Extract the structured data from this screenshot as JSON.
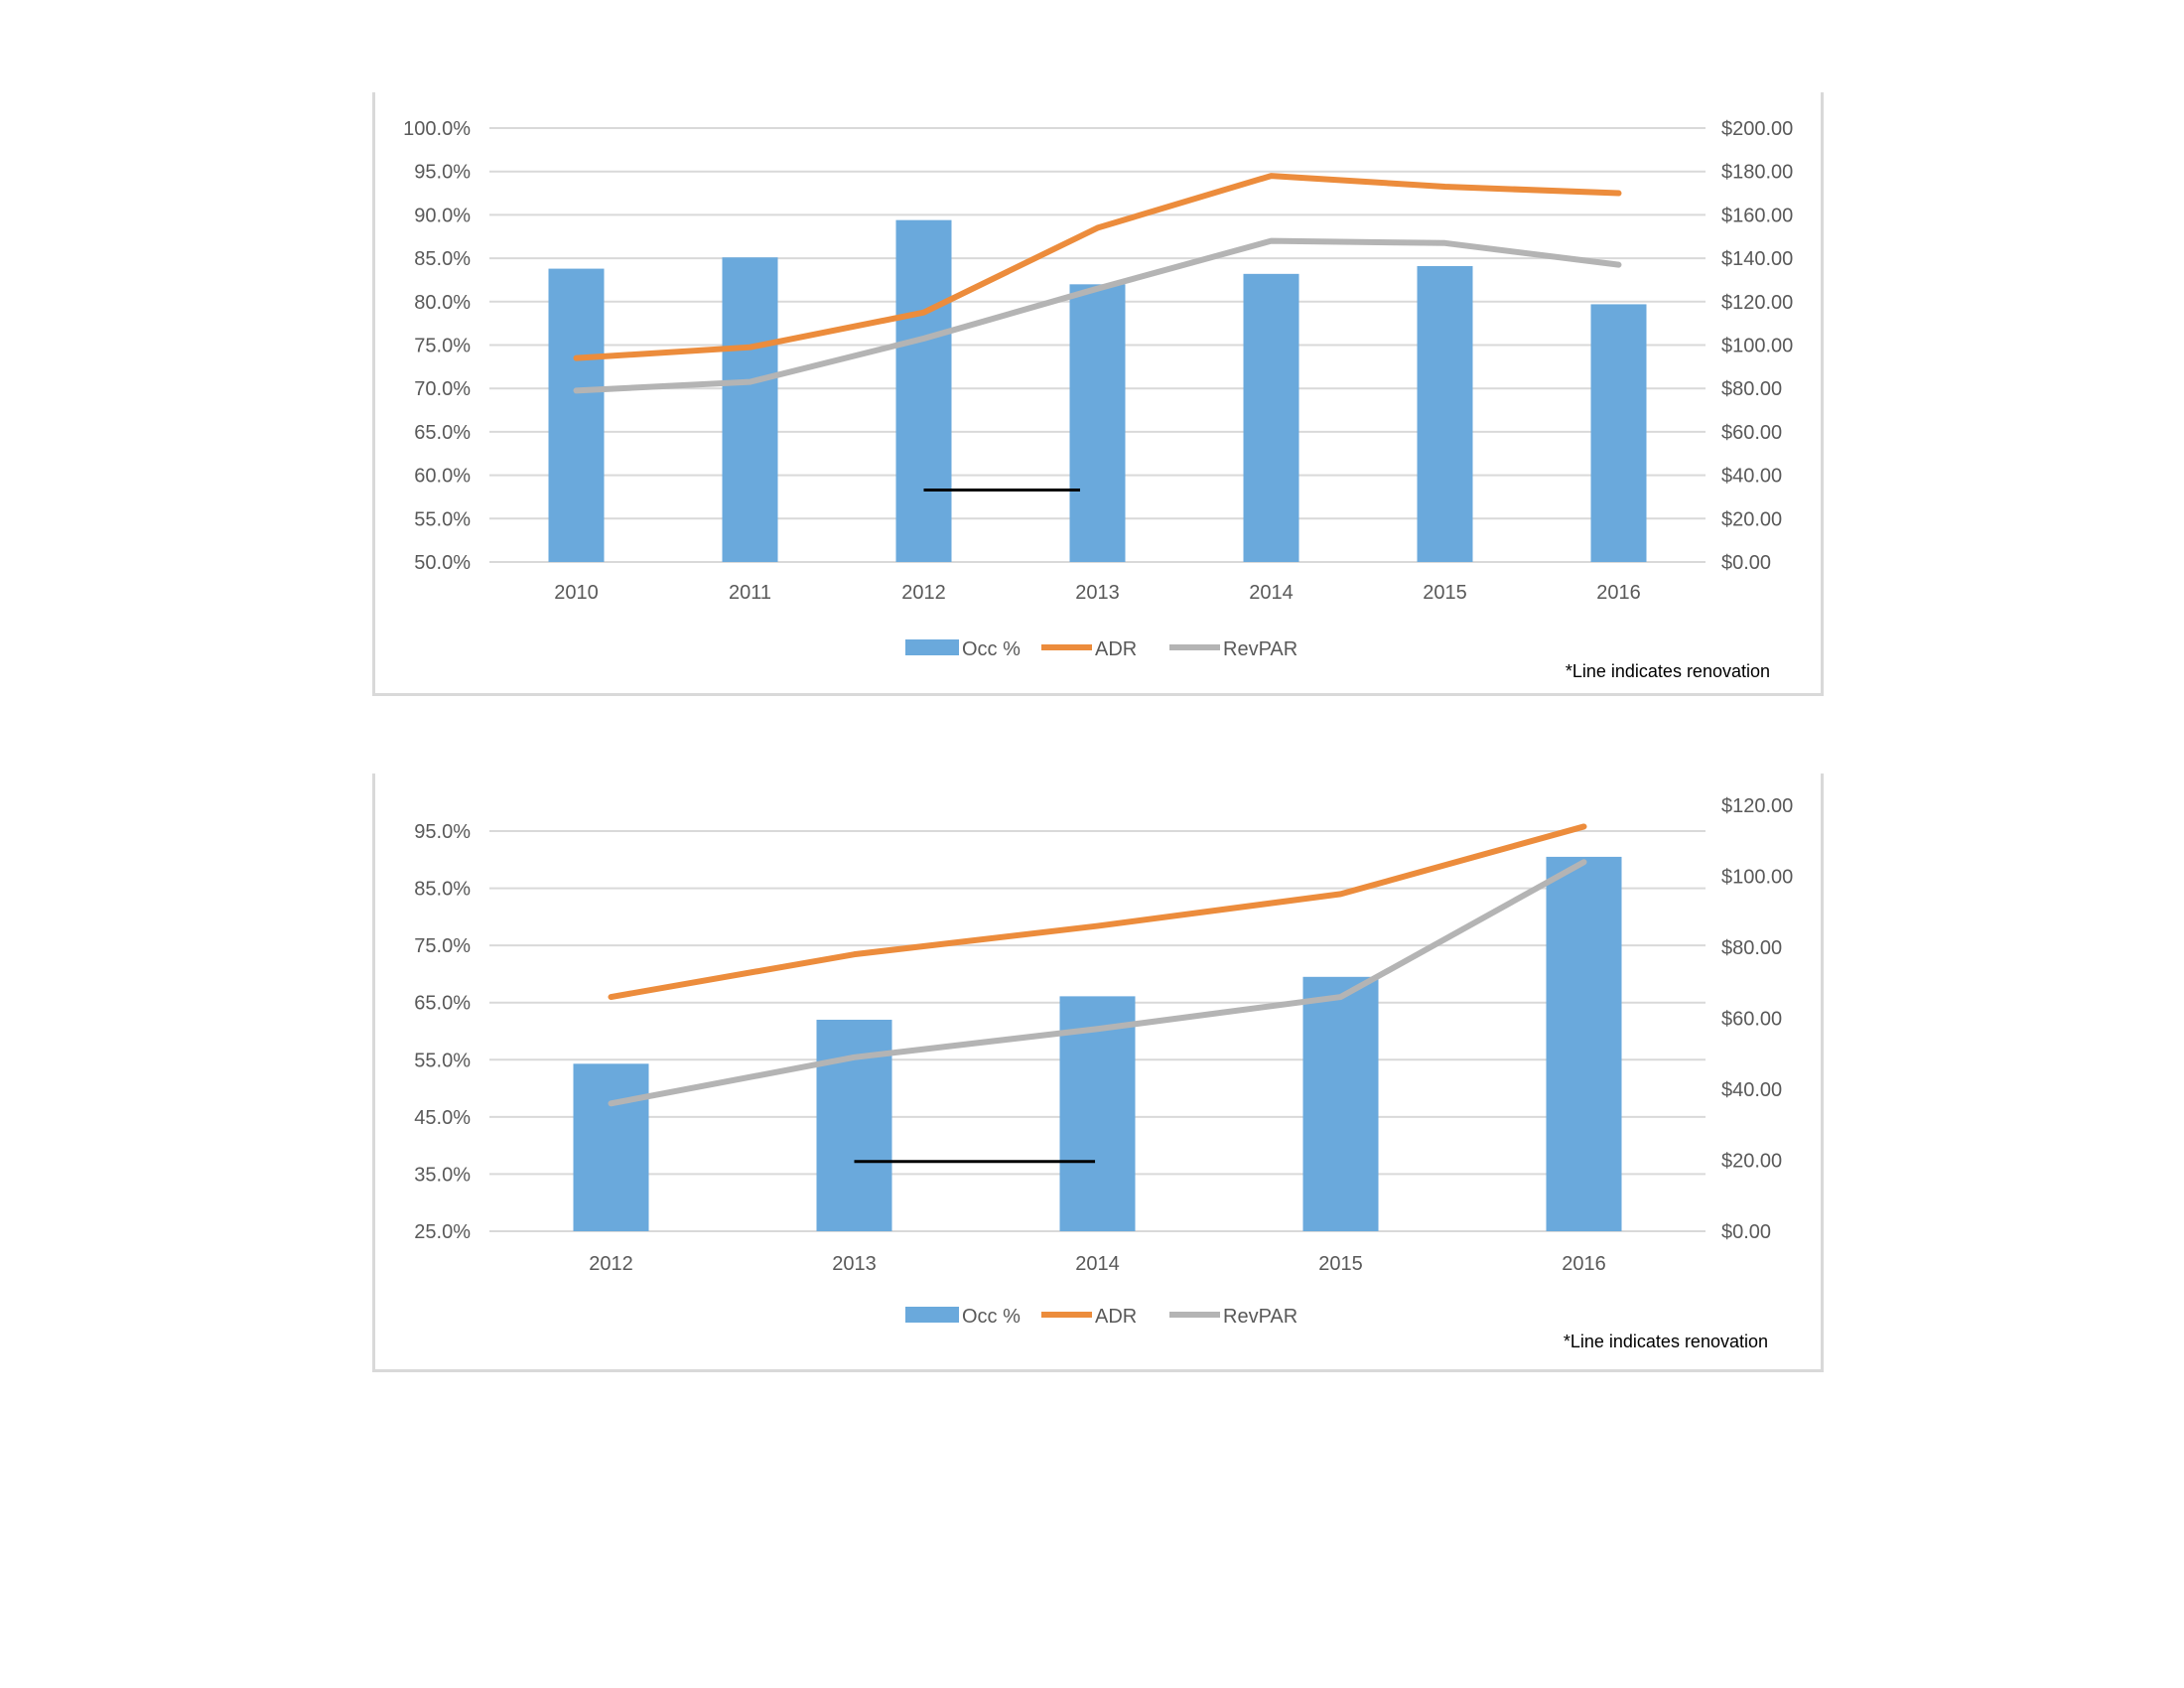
{
  "chart_data": [
    {
      "type": "bar",
      "title": "",
      "categories": [
        "2010",
        "2011",
        "2012",
        "2013",
        "2014",
        "2015",
        "2016"
      ],
      "series": [
        {
          "name": "Occ %",
          "type": "bar",
          "axis": "left",
          "values": [
            83.8,
            85.1,
            89.4,
            82.0,
            83.2,
            84.1,
            79.7
          ]
        },
        {
          "name": "ADR",
          "type": "line",
          "axis": "right",
          "values": [
            94,
            99,
            115,
            154,
            178,
            173,
            170
          ]
        },
        {
          "name": "RevPAR",
          "type": "line",
          "axis": "right",
          "values": [
            79,
            83,
            103,
            126,
            148,
            147,
            137
          ]
        }
      ],
      "left_axis": {
        "min": 50,
        "max": 100,
        "step": 5,
        "tick_labels": [
          "50.0%",
          "55.0%",
          "60.0%",
          "65.0%",
          "70.0%",
          "75.0%",
          "80.0%",
          "85.0%",
          "90.0%",
          "95.0%",
          "100.0%"
        ]
      },
      "right_axis": {
        "min": 0,
        "max": 200,
        "step": 20,
        "tick_labels": [
          "$0.00",
          "$20.00",
          "$40.00",
          "$60.00",
          "$80.00",
          "$100.00",
          "$120.00",
          "$140.00",
          "$160.00",
          "$180.00",
          "$200.00"
        ]
      },
      "renovation_line": {
        "from_category": 2.0,
        "to_category": 2.9,
        "value": 58.3
      },
      "grid": true,
      "legend": "bottom",
      "note": "*Line indicates renovation",
      "colors": {
        "bar": "#6aa9dc",
        "adr": "#ec8c3c",
        "revpar": "#b4b4b4",
        "grid": "#d9d9d9",
        "renovation": "#000000"
      }
    },
    {
      "type": "bar",
      "title": "",
      "categories": [
        "2012",
        "2013",
        "2014",
        "2015",
        "2016"
      ],
      "series": [
        {
          "name": "Occ %",
          "type": "bar",
          "axis": "left",
          "values": [
            54.3,
            62.0,
            66.1,
            69.5,
            90.5
          ]
        },
        {
          "name": "ADR",
          "type": "line",
          "axis": "right",
          "values": [
            66,
            78,
            86,
            95,
            114
          ]
        },
        {
          "name": "RevPAR",
          "type": "line",
          "axis": "right",
          "values": [
            36,
            49,
            57,
            66,
            104
          ]
        }
      ],
      "left_axis": {
        "min": 25,
        "max": 100,
        "step": 10,
        "tick_labels": [
          "25.0%",
          "35.0%",
          "45.0%",
          "55.0%",
          "65.0%",
          "75.0%",
          "85.0%",
          "95.0%"
        ]
      },
      "right_axis": {
        "min": 0,
        "max": 120,
        "step": 20,
        "tick_labels": [
          "$0.00",
          "$20.00",
          "$40.00",
          "$60.00",
          "$80.00",
          "$100.00",
          "$120.00"
        ]
      },
      "renovation_line": {
        "from_category": 1.0,
        "to_category": 1.99,
        "value": 37.2
      },
      "grid": true,
      "legend": "bottom",
      "note": "*Line indicates renovation",
      "colors": {
        "bar": "#6aa9dc",
        "adr": "#ec8c3c",
        "revpar": "#b4b4b4",
        "grid": "#d9d9d9",
        "renovation": "#000000"
      }
    }
  ]
}
